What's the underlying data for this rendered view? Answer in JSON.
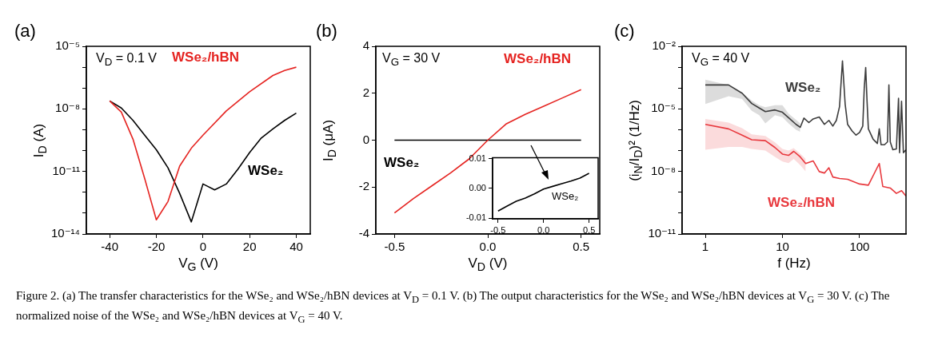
{
  "chart_data": [
    {
      "type": "line",
      "title": "(a)",
      "xlabel": "V$_{G}$ (V)",
      "ylabel": "I$_{D}$ (A)",
      "log": "y",
      "annotations": [
        "V$_{D}$ = 0.1 V",
        "Figure 2. (a) The transfer characteristics for the WSe₂ and WSe₂/hBN devices at V$_{D}$ = 0.1 V. (b) The output characteristics for the WSe₂ and WSe₂/hBN devices at V$_{G}$ = 30 V. (c) The normalized noise of the WSe₂ and WSe₂/hBN devices at V$_{G}$ = 40 V."
      ],
      "xlim": [
        -50,
        46
      ],
      "xticks": [
        -40,
        -20,
        0,
        20,
        40
      ],
      "ylim": [
        1e-14,
        1e-05
      ],
      "yticks": [
        {
          "value": 1e-14,
          "label": "10⁻¹⁴"
        },
        {
          "value": 1e-13,
          "label": null
        },
        {
          "value": 1e-12,
          "label": null
        },
        {
          "value": 1e-11,
          "label": "10⁻¹¹"
        },
        {
          "value": 1e-10,
          "label": null
        },
        {
          "value": 1e-09,
          "label": null
        },
        {
          "value": 1e-08,
          "label": "10⁻⁸"
        },
        {
          "value": 1e-07,
          "label": null
        },
        {
          "value": 1e-06,
          "label": null
        },
        {
          "value": 1e-05,
          "label": "10⁻⁵"
        }
      ],
      "series": [
        {
          "name": "WSe₂/hBN",
          "color": "#e52421",
          "x": [
            -40,
            -35,
            -30,
            -25,
            -20,
            -15,
            -10,
            -5,
            0,
            10,
            20,
            30,
            35,
            40
          ],
          "values": [
            2.4e-08,
            7e-09,
            3.5e-10,
            4.6e-12,
            4.8e-14,
            3.6e-13,
            1.8e-11,
            1.3e-10,
            5.5e-10,
            8e-09,
            6.6e-08,
            4e-07,
            7e-07,
            1e-06
          ]
        },
        {
          "name": "WSe₂",
          "color": "#000000",
          "x": [
            -40,
            -35,
            -30,
            -25,
            -20,
            -15,
            -10,
            -5,
            0,
            5,
            10,
            15,
            20,
            25,
            30,
            35,
            40
          ],
          "values": [
            2.4e-08,
            1.1e-08,
            2.8e-09,
            5.5e-10,
            1.1e-10,
            1.5e-11,
            8.9e-13,
            3.8e-14,
            2.5e-12,
            1.3e-12,
            2.5e-12,
            1.3e-11,
            8e-11,
            4e-10,
            1.1e-09,
            2.8e-09,
            6.3e-09
          ]
        }
      ]
    },
    {
      "type": "line",
      "title": "(b)",
      "xlabel": "V$_{D}$ (V)",
      "ylabel": "I$_{D}$ (μA)",
      "annotations": [
        "V$_{G}$ = 30 V"
      ],
      "xlim": [
        -0.6,
        0.6
      ],
      "xticks": [
        -0.5,
        {
          "value": 0,
          "label": "0.0"
        },
        0.5
      ],
      "ylim": [
        -4,
        4
      ],
      "yticks": [
        -4,
        -2,
        0,
        2,
        4
      ],
      "series": [
        {
          "name": "WSe₂/hBN",
          "color": "#e52421",
          "x": [
            -0.5,
            -0.4,
            -0.3,
            -0.2,
            -0.1,
            0,
            0.1,
            0.2,
            0.3,
            0.4,
            0.5
          ],
          "values": [
            -3.1,
            -2.5,
            -1.95,
            -1.4,
            -0.8,
            0,
            0.7,
            1.1,
            1.45,
            1.8,
            2.15
          ]
        },
        {
          "name": "WSe₂",
          "color": "#000000",
          "x": [
            -0.5,
            0.5
          ],
          "values": [
            0,
            0
          ]
        }
      ]
    },
    {
      "type": "line",
      "xlim": [
        -0.56,
        0.6
      ],
      "xticks": [
        -0.5,
        {
          "value": 0,
          "label": "0.0"
        },
        0.5
      ],
      "ylim": [
        -0.0102,
        0.0103
      ],
      "yticks": [
        -0.01,
        {
          "value": 0,
          "label": "0.00"
        },
        0.01
      ],
      "series": [
        {
          "name": "WSe₂",
          "color": "#000000",
          "x": [
            -0.5,
            -0.4,
            -0.3,
            -0.2,
            -0.1,
            0,
            0.1,
            0.2,
            0.3,
            0.4,
            0.5
          ],
          "values": [
            -0.0076,
            -0.0059,
            -0.0043,
            -0.0032,
            -0.0018,
            -0.0002,
            0.0007,
            0.0016,
            0.0025,
            0.0035,
            0.0051
          ]
        }
      ]
    },
    {
      "type": "line",
      "title": "(c)",
      "xlabel": "f (Hz)",
      "ylabel": "(i$_{N}$/I$_{D}$)² (1/Hz)",
      "log": "xy",
      "annotations": [
        "V$_{G}$ = 40 V"
      ],
      "xlim": [
        0.5,
        400
      ],
      "xticks": [
        1,
        10,
        100
      ],
      "ylim": [
        1e-11,
        0.01
      ],
      "yticks": [
        {
          "value": 1e-11,
          "label": "10⁻¹¹"
        },
        {
          "value": 1e-10,
          "label": null
        },
        {
          "value": 1e-09,
          "label": null
        },
        {
          "value": 1e-08,
          "label": "10⁻⁸"
        },
        {
          "value": 1e-07,
          "label": null
        },
        {
          "value": 1e-06,
          "label": null
        },
        {
          "value": 1e-05,
          "label": "10⁻⁵"
        },
        {
          "value": 0.0001,
          "label": null
        },
        {
          "value": 0.001,
          "label": null
        },
        {
          "value": 0.01,
          "label": "10⁻²"
        }
      ],
      "series": [
        {
          "name": "WSe₂",
          "color": "#3c3c3c",
          "x": [
            1,
            2,
            3,
            4,
            5,
            6,
            8,
            10,
            12,
            15,
            17,
            19,
            22,
            25,
            30,
            35,
            40,
            45,
            50,
            55,
            60,
            65,
            70,
            80,
            90,
            100,
            110,
            115,
            120,
            125,
            130,
            150,
            170,
            180,
            190,
            210,
            230,
            240,
            250,
            270,
            300,
            320,
            330,
            350,
            370,
            400
          ],
          "values": [
            0.00014,
            0.00014,
            5.6e-05,
            1.8e-05,
            1.1e-05,
            7.4e-06,
            8.9e-06,
            6.9e-06,
            3.8e-06,
            1.8e-06,
            1.3e-06,
            3.6e-06,
            2.2e-06,
            3.3e-06,
            4.1e-06,
            1.8e-06,
            2.8e-06,
            1.5e-06,
            2.8e-06,
            1.3e-05,
            0.002,
            1.7e-05,
            1.8e-06,
            8.7e-07,
            5.5e-07,
            7.4e-07,
            1.5e-06,
            0.0001,
            0.00097,
            2.3e-05,
            1.1e-06,
            3.5e-07,
            2.2e-07,
            1.1e-06,
            1.9e-07,
            1.9e-07,
            2.6e-07,
            0.00014,
            2.6e-07,
            1.1e-07,
            1.2e-07,
            3.2e-05,
            7.9e-08,
            2.3e-05,
            7.9e-08,
            1.1e-07
          ],
          "upper": [
            0.00025,
            0.00014,
            6e-05,
            2.5e-05,
            1.5e-05,
            1.2e-05,
            1.5e-05,
            1.5e-05,
            6e-06,
            3e-06,
            2e-06,
            null,
            null,
            null,
            null,
            null,
            null,
            null,
            null,
            null,
            null,
            null,
            null,
            null,
            null,
            null,
            null,
            null,
            null,
            null,
            null,
            null,
            null,
            null,
            null,
            null,
            null,
            null,
            null,
            null,
            null,
            null,
            null,
            null,
            null,
            null
          ],
          "lower": [
            1.7e-05,
            4e-05,
            3e-05,
            8e-06,
            5e-06,
            2e-06,
            5e-06,
            4e-06,
            2e-06,
            1e-06,
            8e-07,
            null,
            null,
            null,
            null,
            null,
            null,
            null,
            null,
            null,
            null,
            null,
            null,
            null,
            null,
            null,
            null,
            null,
            null,
            null,
            null,
            null,
            null,
            null,
            null,
            null,
            null,
            null,
            null,
            null,
            null,
            null,
            null,
            null,
            null,
            null
          ]
        },
        {
          "name": "WSe₂/hBN",
          "color": "#e8383d",
          "x": [
            1,
            2,
            3,
            4,
            6,
            8,
            10,
            12,
            14,
            17,
            20,
            25,
            30,
            35,
            40,
            45,
            55,
            70,
            100,
            130,
            180,
            200,
            250,
            300,
            350,
            400
          ],
          "values": [
            1.8e-06,
            1.1e-06,
            5.5e-07,
            3.3e-07,
            3e-07,
            1.4e-07,
            6.8e-08,
            5.9e-08,
            9.2e-08,
            5e-08,
            2.4e-08,
            3.2e-08,
            9.8e-09,
            8.4e-09,
            1.5e-08,
            5.4e-09,
            4.6e-09,
            4.2e-09,
            2.5e-09,
            2.2e-09,
            2.4e-08,
            1.9e-09,
            1.6e-09,
            8.9e-10,
            1.2e-09,
            6.6e-10
          ],
          "upper": [
            3.3e-06,
            2.2e-06,
            1.2e-06,
            6e-07,
            5e-07,
            2.5e-07,
            1.2e-07,
            1e-07,
            1.3e-07,
            7e-08,
            4e-08,
            null,
            null,
            null,
            null,
            null,
            null,
            null,
            null,
            null,
            null,
            null,
            null,
            null,
            null,
            null
          ],
          "lower": [
            1.1e-07,
            1.5e-07,
            1.5e-07,
            1.2e-07,
            1e-07,
            5e-08,
            3e-08,
            2.5e-08,
            4e-08,
            2e-08,
            1e-08,
            null,
            null,
            null,
            null,
            null,
            null,
            null,
            null,
            null,
            null,
            null,
            null,
            null,
            null,
            null
          ]
        }
      ]
    }
  ]
}
